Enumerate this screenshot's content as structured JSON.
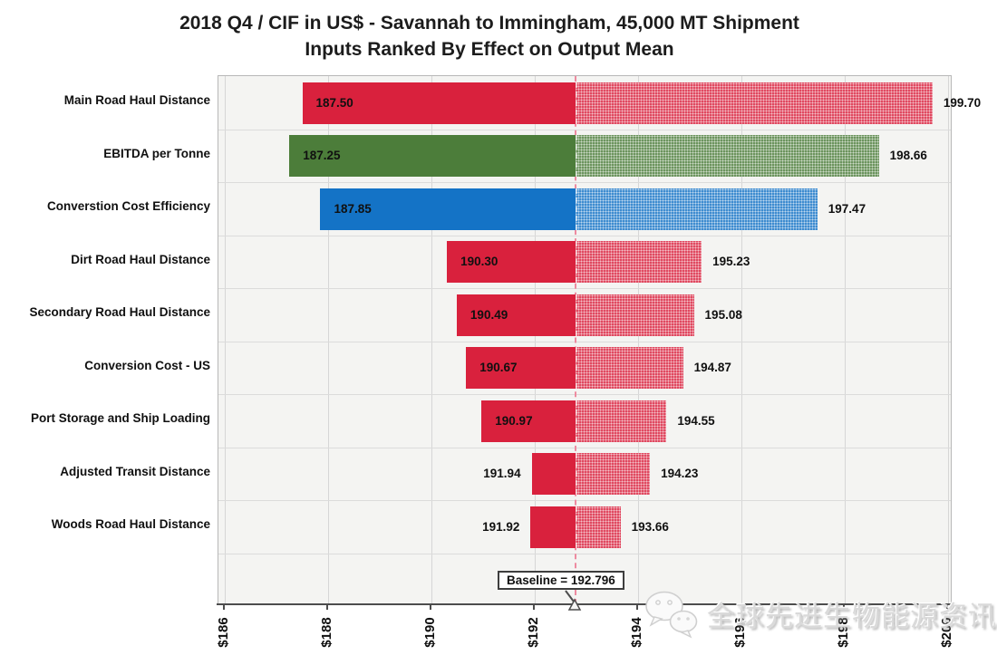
{
  "title": {
    "line1": "2018 Q4 / CIF in US$ - Savannah to Immingham, 45,000 MT Shipment",
    "line2": "Inputs Ranked By Effect on Output Mean"
  },
  "chart_data": {
    "type": "bar",
    "subtype": "tornado",
    "orientation": "horizontal",
    "title": "2018 Q4 / CIF in US$ - Savannah to Immingham, 45,000 MT Shipment",
    "subtitle": "Inputs Ranked By Effect on Output Mean",
    "baseline_value": 192.796,
    "baseline_label": "Baseline = 192.796",
    "axis": {
      "min": 186,
      "max": 200,
      "tick_values": [
        186,
        188,
        190,
        192,
        194,
        196,
        198,
        200
      ],
      "tick_labels": [
        "$186",
        "$188",
        "$190",
        "$192",
        "$194",
        "$196",
        "$198",
        "$200"
      ],
      "grid": true
    },
    "colors": {
      "red": "#d9213d",
      "green": "#4c7d3a",
      "blue": "#1473c6"
    },
    "bars": [
      {
        "category": "Main Road Haul Distance",
        "low": 187.5,
        "high": 199.7,
        "low_label": "187.50",
        "high_label": "199.70",
        "color": "red",
        "low_label_inside": true
      },
      {
        "category": "EBITDA per Tonne",
        "low": 187.25,
        "high": 198.66,
        "low_label": "187.25",
        "high_label": "198.66",
        "color": "green",
        "low_label_inside": true
      },
      {
        "category": "Converstion Cost Efficiency",
        "low": 187.85,
        "high": 197.47,
        "low_label": "187.85",
        "high_label": "197.47",
        "color": "blue",
        "low_label_inside": true
      },
      {
        "category": "Dirt Road Haul Distance",
        "low": 190.3,
        "high": 195.23,
        "low_label": "190.30",
        "high_label": "195.23",
        "color": "red",
        "low_label_inside": true
      },
      {
        "category": "Secondary Road Haul Distance",
        "low": 190.49,
        "high": 195.08,
        "low_label": "190.49",
        "high_label": "195.08",
        "color": "red",
        "low_label_inside": true
      },
      {
        "category": "Conversion Cost - US",
        "low": 190.67,
        "high": 194.87,
        "low_label": "190.67",
        "high_label": "194.87",
        "color": "red",
        "low_label_inside": true
      },
      {
        "category": "Port Storage and Ship Loading",
        "low": 190.97,
        "high": 194.55,
        "low_label": "190.97",
        "high_label": "194.55",
        "color": "red",
        "low_label_inside": true
      },
      {
        "category": "Adjusted Transit Distance",
        "low": 191.94,
        "high": 194.23,
        "low_label": "191.94",
        "high_label": "194.23",
        "color": "red",
        "low_label_inside": false
      },
      {
        "category": "Woods Road Haul Distance",
        "low": 191.92,
        "high": 193.66,
        "low_label": "191.92",
        "high_label": "193.66",
        "color": "red",
        "low_label_inside": false
      }
    ]
  },
  "watermark": {
    "icon": "wechat-icon",
    "text": "全球先进生物能源资讯"
  }
}
